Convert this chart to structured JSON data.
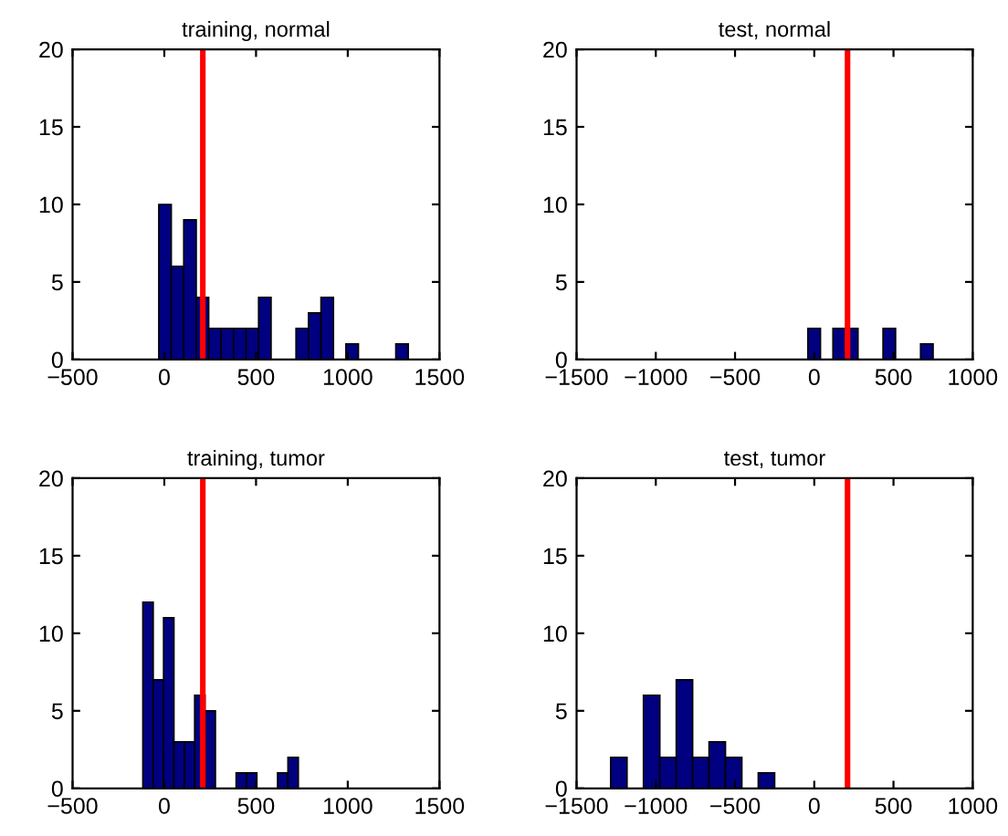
{
  "chart_data": [
    {
      "type": "histogram",
      "title": "training, normal",
      "color": "#000080",
      "bins": [
        -30,
        38,
        106,
        174,
        242,
        310,
        378,
        446,
        514,
        582,
        650,
        718,
        786,
        854,
        922,
        990,
        1058,
        1126,
        1194,
        1262,
        1330
      ],
      "values": [
        10,
        6,
        9,
        4,
        2,
        2,
        2,
        2,
        4,
        0,
        0,
        2,
        3,
        4,
        0,
        1,
        0,
        0,
        0,
        1
      ],
      "xlim": [
        -500,
        1500
      ],
      "xticks": [
        {
          "value": -500,
          "label": "−500"
        },
        0,
        500,
        1000,
        1500
      ],
      "ylim": [
        0,
        20
      ],
      "yticks": [
        0,
        5,
        10,
        15,
        20
      ],
      "ref_lines": [
        {
          "axis": "x",
          "value": 210,
          "color": "#ff0000"
        }
      ]
    },
    {
      "type": "histogram",
      "title": "test, normal",
      "color": "#000080",
      "bins": [
        -40,
        39,
        118,
        197,
        276,
        355,
        434,
        513,
        592,
        671,
        750
      ],
      "values": [
        2,
        0,
        2,
        2,
        0,
        0,
        2,
        0,
        0,
        1
      ],
      "xlim": [
        -1500,
        1000
      ],
      "xticks": [
        {
          "value": -1500,
          "label": "−1500"
        },
        {
          "value": -1000,
          "label": "−1000"
        },
        {
          "value": -500,
          "label": "−500"
        },
        0,
        500,
        1000
      ],
      "ylim": [
        0,
        20
      ],
      "yticks": [
        0,
        5,
        10,
        15,
        20
      ],
      "ref_lines": [
        {
          "axis": "x",
          "value": 210,
          "color": "#ff0000"
        }
      ]
    },
    {
      "type": "histogram",
      "title": "training, tumor",
      "color": "#000080",
      "bins": [
        -117,
        -60.5,
        -4,
        52.5,
        109,
        165.5,
        222,
        278.5,
        335,
        391.5,
        448,
        504.5,
        561,
        617.5,
        674,
        730.5
      ],
      "values": [
        12,
        7,
        11,
        3,
        3,
        6,
        5,
        0,
        0,
        1,
        1,
        0,
        0,
        1,
        2
      ],
      "xlim": [
        -500,
        1500
      ],
      "xticks": [
        {
          "value": -500,
          "label": "−500"
        },
        0,
        500,
        1000,
        1500
      ],
      "ylim": [
        0,
        20
      ],
      "yticks": [
        0,
        5,
        10,
        15,
        20
      ],
      "ref_lines": [
        {
          "axis": "x",
          "value": 210,
          "color": "#ff0000"
        }
      ]
    },
    {
      "type": "histogram",
      "title": "test, tumor",
      "color": "#000080",
      "bins": [
        -1285,
        -1181.5,
        -1078,
        -974.5,
        -871,
        -767.5,
        -664,
        -560.5,
        -457,
        -353.5,
        -250
      ],
      "values": [
        2,
        0,
        6,
        2,
        7,
        2,
        3,
        2,
        0,
        1
      ],
      "xlim": [
        -1500,
        1000
      ],
      "xticks": [
        {
          "value": -1500,
          "label": "−1500"
        },
        {
          "value": -1000,
          "label": "−1000"
        },
        {
          "value": -500,
          "label": "−500"
        },
        0,
        500,
        1000
      ],
      "ylim": [
        0,
        20
      ],
      "yticks": [
        0,
        5,
        10,
        15,
        20
      ],
      "ref_lines": [
        {
          "axis": "x",
          "value": 210,
          "color": "#ff0000"
        }
      ]
    }
  ]
}
